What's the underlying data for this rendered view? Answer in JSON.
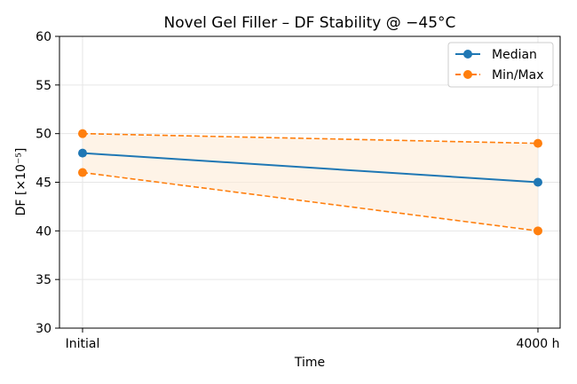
{
  "chart_data": {
    "type": "line",
    "title": "Novel Gel Filler – DF Stability @ −45°C",
    "xlabel": "Time",
    "ylabel": "DF [×10⁻⁵]",
    "categories": [
      "Initial",
      "4000 h"
    ],
    "ylim": [
      30,
      60
    ],
    "yticks": [
      30,
      35,
      40,
      45,
      50,
      55,
      60
    ],
    "grid": true,
    "legend_position": "top-right",
    "series": [
      {
        "name": "Median",
        "style": "solid",
        "color": "#1f77b4",
        "values": [
          48,
          45
        ]
      },
      {
        "name": "Min/Max",
        "style": "dashed",
        "color": "#ff7f0e",
        "min": [
          46,
          40
        ],
        "max": [
          50,
          49
        ]
      }
    ],
    "fill_color": "#fdebd7"
  }
}
